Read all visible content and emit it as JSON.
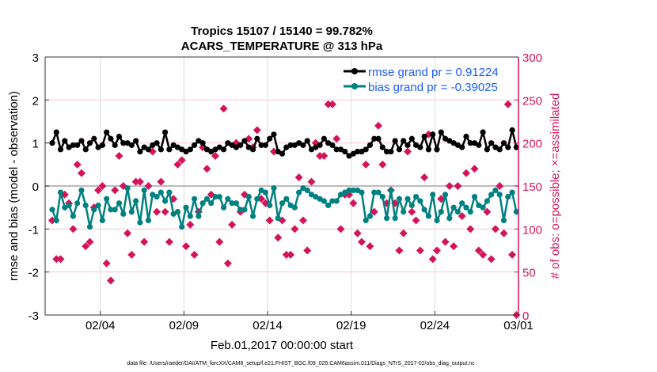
{
  "chart_data": {
    "type": "line",
    "title": [
      "Tropics 15107 / 15140 = 99.782%",
      "ACARS_TEMPERATURE @ 313 hPa"
    ],
    "xlabel": "Feb.01,2017 00:00:00 start",
    "ylabel": "rmse and bias (model - observation)",
    "y2label": "# of obs: o=possible; ×=assimilated",
    "xlim": [
      -0.3,
      28
    ],
    "ylim": [
      -3,
      3
    ],
    "y2lim": [
      0,
      300
    ],
    "xticks": [
      {
        "day": 3,
        "label": "02/04"
      },
      {
        "day": 8,
        "label": "02/09"
      },
      {
        "day": 13,
        "label": "02/14"
      },
      {
        "day": 18,
        "label": "02/19"
      },
      {
        "day": 23,
        "label": "02/24"
      },
      {
        "day": 28,
        "label": "03/01"
      }
    ],
    "yticks": [
      "-3",
      "-2",
      "-1",
      "0",
      "1",
      "2",
      "3"
    ],
    "y2ticks": [
      "0",
      "50",
      "100",
      "150",
      "200",
      "250",
      "300"
    ],
    "footer": "data file: /Users/raeder/DAI/ATM_forcXX/CAM6_setup/f.e21.FHIST_BGC.f09_025.CAM6assim.011/Diags_NTrS_2017-02/obs_diag_output.nc",
    "legend_position": "top-right",
    "colors": {
      "rmse": "#000000",
      "bias": "#008080",
      "obs": "#d4145a",
      "zero": "#bbbbbb"
    },
    "series": [
      {
        "name": "rmse grand pr = 0.91224",
        "key": "rmse",
        "values": [
          1.0,
          1.25,
          0.85,
          1.05,
          0.9,
          0.95,
          0.95,
          1.05,
          0.85,
          1.0,
          1.1,
          0.9,
          0.95,
          1.25,
          1.1,
          0.95,
          1.15,
          1.0,
          1.0,
          0.95,
          1.05,
          0.8,
          0.9,
          0.85,
          0.95,
          1.0,
          0.85,
          1.25,
          0.85,
          0.95,
          0.9,
          0.85,
          0.8,
          0.85,
          0.95,
          1.05,
          1.0,
          0.85,
          0.8,
          0.85,
          0.9,
          0.85,
          1.0,
          0.95,
          0.9,
          0.95,
          1.05,
          0.9,
          0.85,
          1.1,
          0.95,
          0.95,
          1.1,
          1.2,
          0.8,
          0.75,
          0.9,
          0.95,
          0.95,
          1.0,
          0.95,
          1.05,
          0.85,
          0.9,
          0.95,
          1.1,
          1.0,
          0.95,
          0.85,
          0.85,
          0.8,
          0.7,
          0.75,
          0.8,
          0.8,
          0.85,
          0.95,
          1.1,
          1.1,
          0.9,
          0.8,
          0.8,
          1.05,
          0.85,
          1.05,
          0.95,
          1.1,
          0.95,
          0.9,
          1.15,
          0.85,
          1.2,
          0.85,
          1.25,
          1.1,
          1.05,
          1.0,
          0.95,
          0.9,
          1.15,
          1.0,
          1.0,
          0.95,
          1.25,
          0.85,
          1.0,
          0.9,
          0.85,
          1.0,
          0.9,
          1.3,
          0.9
        ]
      },
      {
        "name": "bias grand pr = -0.39025",
        "key": "bias",
        "values": [
          -0.55,
          -0.8,
          -0.15,
          -0.5,
          -0.45,
          -0.7,
          -0.4,
          -0.1,
          -0.45,
          -0.95,
          -0.55,
          -0.45,
          -0.8,
          -0.3,
          -0.55,
          -0.55,
          -0.4,
          -0.65,
          -0.05,
          -0.6,
          -0.35,
          -0.85,
          -0.1,
          -0.8,
          -0.2,
          -0.25,
          -0.15,
          -0.35,
          -0.15,
          -0.65,
          -0.6,
          -0.95,
          -0.5,
          -0.7,
          -0.3,
          -0.7,
          -0.4,
          -0.3,
          -0.4,
          -0.25,
          -0.25,
          -0.5,
          -0.3,
          -0.4,
          -0.4,
          -0.55,
          -0.55,
          -0.25,
          -0.7,
          -0.3,
          -0.1,
          -0.15,
          -0.45,
          -0.05,
          -0.75,
          -0.4,
          -0.3,
          -0.45,
          -0.5,
          -0.15,
          -0.05,
          -0.1,
          -0.2,
          -0.25,
          -0.3,
          -0.35,
          -0.45,
          -0.35,
          -0.35,
          -0.2,
          -0.15,
          -0.1,
          -0.1,
          -0.1,
          -0.15,
          -0.8,
          -0.7,
          -0.15,
          -0.15,
          -0.25,
          -0.75,
          -0.1,
          -0.75,
          -0.3,
          -0.6,
          -0.3,
          -0.45,
          -0.25,
          -0.35,
          -0.55,
          -0.7,
          -0.2,
          -0.8,
          -0.6,
          -0.2,
          -0.75,
          -0.5,
          -0.6,
          -0.4,
          -0.5,
          -0.6,
          -0.25,
          -0.45,
          -0.5,
          -0.35,
          -0.2,
          -0.1,
          -0.2,
          -0.8,
          -0.25,
          -0.15,
          -0.6
        ]
      },
      {
        "name": "obs assimilated",
        "key": "obs",
        "axis": "right",
        "values": [
          110,
          65,
          65,
          140,
          130,
          100,
          175,
          165,
          80,
          85,
          125,
          145,
          150,
          60,
          40,
          145,
          185,
          150,
          95,
          70,
          155,
          155,
          85,
          150,
          190,
          120,
          155,
          120,
          85,
          135,
          175,
          180,
          80,
          105,
          70,
          120,
          195,
          170,
          140,
          185,
          85,
          240,
          60,
          105,
          200,
          120,
          140,
          205,
          195,
          215,
          135,
          130,
          110,
          190,
          90,
          110,
          70,
          70,
          100,
          160,
          110,
          75,
          155,
          200,
          185,
          185,
          245,
          245,
          205,
          100,
          140,
          140,
          130,
          95,
          85,
          175,
          80,
          120,
          220,
          175,
          130,
          145,
          130,
          75,
          95,
          190,
          120,
          110,
          75,
          160,
          210,
          65,
          75,
          135,
          85,
          150,
          80,
          150,
          115,
          165,
          100,
          170,
          75,
          70,
          120,
          65,
          100,
          150,
          95,
          245,
          70,
          0
        ]
      }
    ]
  }
}
